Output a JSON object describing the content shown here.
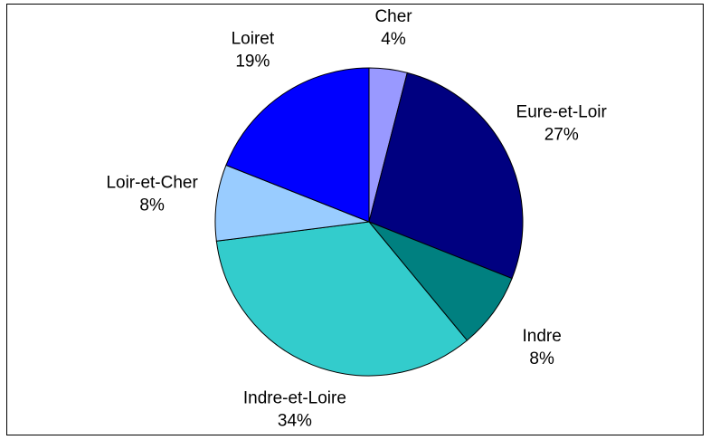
{
  "chart_data": {
    "type": "pie",
    "categories": [
      "Cher",
      "Eure-et-Loir",
      "Indre",
      "Indre-et-Loire",
      "Loir-et-Cher",
      "Loiret"
    ],
    "values": [
      4,
      27,
      8,
      34,
      8,
      19
    ],
    "value_labels": [
      "4%",
      "27%",
      "8%",
      "34%",
      "8%",
      "19%"
    ],
    "colors": [
      "#9999ff",
      "#000080",
      "#008080",
      "#33cccc",
      "#99ccff",
      "#0000ff"
    ]
  }
}
